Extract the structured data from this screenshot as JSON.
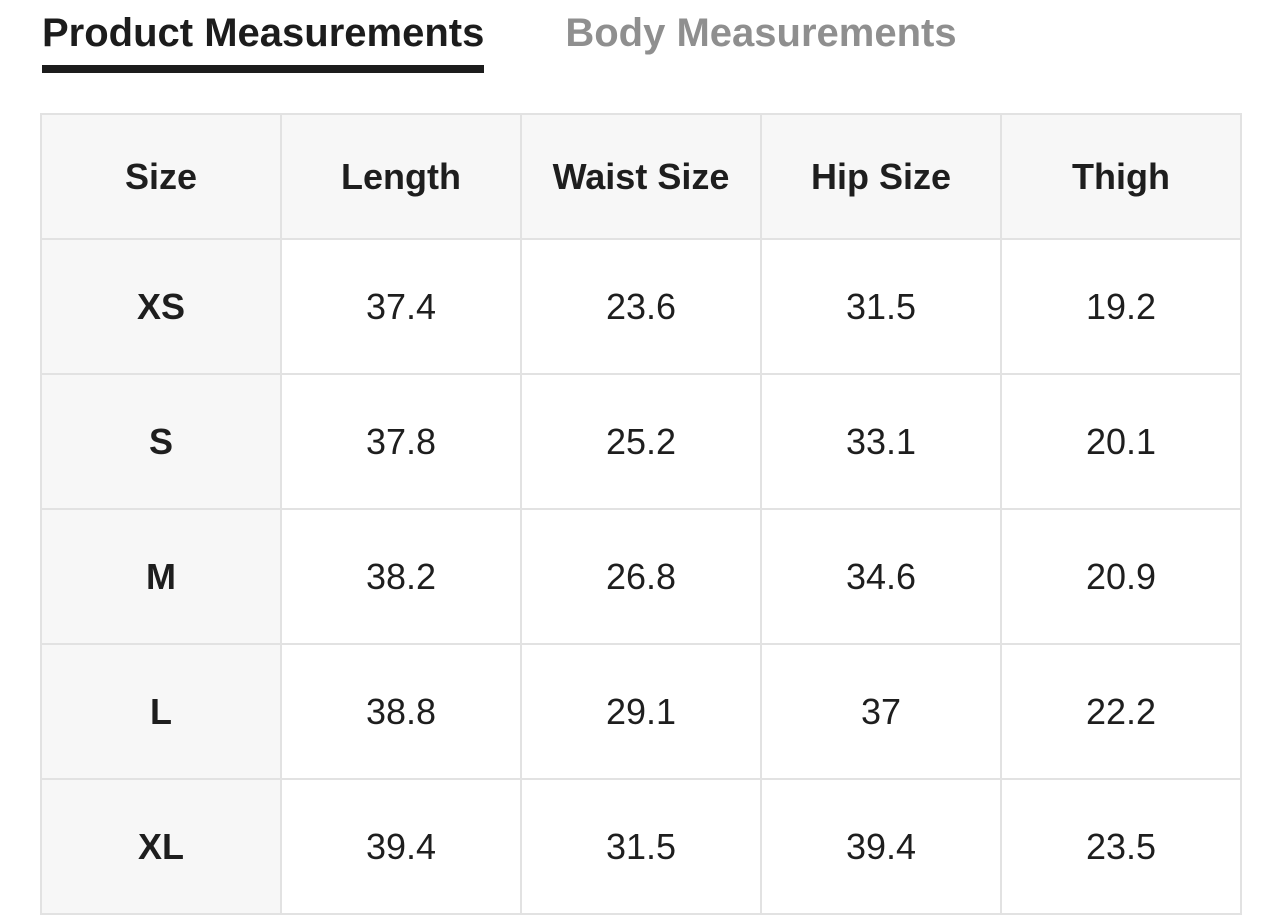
{
  "tabs": {
    "product": {
      "label": "Product Measurements",
      "active": true
    },
    "body": {
      "label": "Body Measurements",
      "active": false
    }
  },
  "table": {
    "columns": [
      "Size",
      "Length",
      "Waist Size",
      "Hip Size",
      "Thigh"
    ],
    "rows": [
      {
        "size": "XS",
        "values": [
          "37.4",
          "23.6",
          "31.5",
          "19.2"
        ]
      },
      {
        "size": "S",
        "values": [
          "37.8",
          "25.2",
          "33.1",
          "20.1"
        ]
      },
      {
        "size": "M",
        "values": [
          "38.2",
          "26.8",
          "34.6",
          "20.9"
        ]
      },
      {
        "size": "L",
        "values": [
          "38.8",
          "29.1",
          "37",
          "22.2"
        ]
      },
      {
        "size": "XL",
        "values": [
          "39.4",
          "31.5",
          "39.4",
          "23.5"
        ]
      }
    ]
  },
  "colors": {
    "active_tab_text": "#1c1c1c",
    "inactive_tab_text": "#8f8f8f",
    "tab_underline": "#1c1c1c",
    "grid_border": "#e2e2e2",
    "header_background": "#f7f7f7",
    "cell_background": "#ffffff",
    "cell_text": "#1e1e1e"
  }
}
